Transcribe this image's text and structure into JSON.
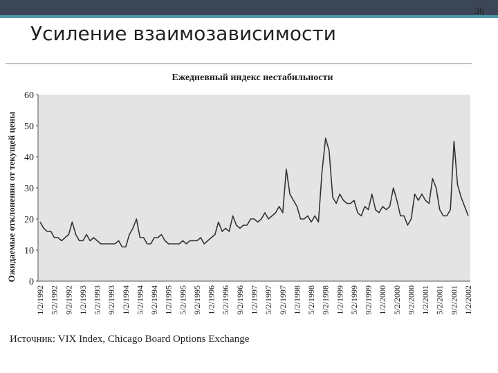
{
  "slide": {
    "title": "Усиление взаимозависимости",
    "page_number": "36",
    "source": "Источник: VIX Index, Chicago Board Options Exchange"
  },
  "chart_data": {
    "type": "line",
    "title": "Ежедневный индекс нестабильности",
    "y_label": "Ожидаемые отклонения от текущей цены",
    "categories": [
      "1/2/1992",
      null,
      null,
      null,
      "5/2/1992",
      null,
      null,
      null,
      "9/2/1992",
      null,
      null,
      null,
      "1/2/1993",
      null,
      null,
      null,
      "5/2/1993",
      null,
      null,
      null,
      "9/2/1993",
      null,
      null,
      null,
      "1/2/1994",
      null,
      null,
      null,
      "5/2/1994",
      null,
      null,
      null,
      "9/2/1994",
      null,
      null,
      null,
      "1/2/1995",
      null,
      null,
      null,
      "5/2/1995",
      null,
      null,
      null,
      "9/2/1995",
      null,
      null,
      null,
      "1/2/1996",
      null,
      null,
      null,
      "5/2/1996",
      null,
      null,
      null,
      "9/2/1996",
      null,
      null,
      null,
      "1/2/1997",
      null,
      null,
      null,
      "5/2/1997",
      null,
      null,
      null,
      "9/2/1997",
      null,
      null,
      null,
      "1/2/1998",
      null,
      null,
      null,
      "5/2/1998",
      null,
      null,
      null,
      "9/2/1998",
      null,
      null,
      null,
      "1/2/1999",
      null,
      null,
      null,
      "5/2/1999",
      null,
      null,
      null,
      "9/2/1999",
      null,
      null,
      null,
      "1/2/2000",
      null,
      null,
      null,
      "5/2/2000",
      null,
      null,
      null,
      "9/2/2000",
      null,
      null,
      null,
      "1/2/2001",
      null,
      null,
      null,
      "5/2/2001",
      null,
      null,
      null,
      "9/2/2001",
      null,
      null,
      null,
      "1/2/2002"
    ],
    "values": [
      19,
      17,
      16,
      16,
      14,
      14,
      13,
      14,
      15,
      19,
      15,
      13,
      13,
      15,
      13,
      14,
      13,
      12,
      12,
      12,
      12,
      12,
      13,
      11,
      11,
      15,
      17,
      20,
      14,
      14,
      12,
      12,
      14,
      14,
      15,
      13,
      12,
      12,
      12,
      12,
      13,
      12,
      13,
      13,
      13,
      14,
      12,
      13,
      14,
      15,
      19,
      16,
      17,
      16,
      21,
      18,
      17,
      18,
      18,
      20,
      20,
      19,
      20,
      22,
      20,
      21,
      22,
      24,
      22,
      36,
      28,
      26,
      24,
      20,
      20,
      21,
      19,
      21,
      19,
      35,
      46,
      42,
      27,
      25,
      28,
      26,
      25,
      25,
      26,
      22,
      21,
      24,
      23,
      28,
      23,
      22,
      24,
      23,
      24,
      30,
      26,
      21,
      21,
      18,
      20,
      28,
      26,
      28,
      26,
      25,
      33,
      30,
      23,
      21,
      21,
      23,
      45,
      31,
      27,
      24,
      21
    ],
    "color": "#333333",
    "ylim": [
      0,
      60
    ],
    "yticks": [
      0,
      10,
      20,
      30,
      40,
      50,
      60
    ]
  }
}
